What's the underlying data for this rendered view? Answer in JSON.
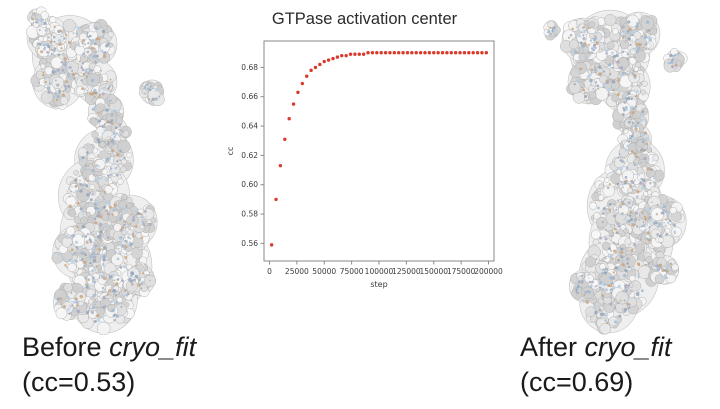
{
  "chart_data": {
    "type": "scatter",
    "title": "GTPase activation center",
    "xlabel": "step",
    "ylabel": "cc",
    "xlim": [
      -5000,
      205000
    ],
    "ylim": [
      0.548,
      0.698
    ],
    "xticks": [
      0,
      25000,
      50000,
      75000,
      100000,
      125000,
      150000,
      175000,
      200000
    ],
    "yticks": [
      0.56,
      0.58,
      0.6,
      0.62,
      0.64,
      0.66,
      0.68
    ],
    "marker_color": "#d93a2b",
    "points": [
      [
        2000,
        0.559
      ],
      [
        6000,
        0.59
      ],
      [
        10000,
        0.613
      ],
      [
        14000,
        0.631
      ],
      [
        18000,
        0.645
      ],
      [
        22000,
        0.655
      ],
      [
        26000,
        0.663
      ],
      [
        30000,
        0.669
      ],
      [
        34000,
        0.674
      ],
      [
        38000,
        0.678
      ],
      [
        42000,
        0.68
      ],
      [
        46000,
        0.682
      ],
      [
        50000,
        0.684
      ],
      [
        54000,
        0.685
      ],
      [
        58000,
        0.686
      ],
      [
        62000,
        0.687
      ],
      [
        66000,
        0.688
      ],
      [
        70000,
        0.688
      ],
      [
        74000,
        0.689
      ],
      [
        78000,
        0.689
      ],
      [
        82000,
        0.689
      ],
      [
        86000,
        0.689
      ],
      [
        90000,
        0.69
      ],
      [
        94000,
        0.69
      ],
      [
        98000,
        0.69
      ],
      [
        102000,
        0.69
      ],
      [
        106000,
        0.69
      ],
      [
        110000,
        0.69
      ],
      [
        114000,
        0.69
      ],
      [
        118000,
        0.69
      ],
      [
        122000,
        0.69
      ],
      [
        126000,
        0.69
      ],
      [
        130000,
        0.69
      ],
      [
        134000,
        0.69
      ],
      [
        138000,
        0.69
      ],
      [
        142000,
        0.69
      ],
      [
        146000,
        0.69
      ],
      [
        150000,
        0.69
      ],
      [
        154000,
        0.69
      ],
      [
        158000,
        0.69
      ],
      [
        162000,
        0.69
      ],
      [
        166000,
        0.69
      ],
      [
        170000,
        0.69
      ],
      [
        174000,
        0.69
      ],
      [
        178000,
        0.69
      ],
      [
        182000,
        0.69
      ],
      [
        186000,
        0.69
      ],
      [
        190000,
        0.69
      ],
      [
        194000,
        0.69
      ],
      [
        198000,
        0.69
      ]
    ],
    "grid": false,
    "legend": null
  },
  "captions": {
    "before": {
      "prefix": "Before ",
      "term": "cryo_fit",
      "cc": "(cc=0.53)"
    },
    "after": {
      "prefix": "After ",
      "term": "cryo_fit",
      "cc": "(cc=0.69)"
    }
  },
  "structures": {
    "before_label": "cryo-EM density map before fitting",
    "after_label": "cryo-EM density map after fitting"
  }
}
